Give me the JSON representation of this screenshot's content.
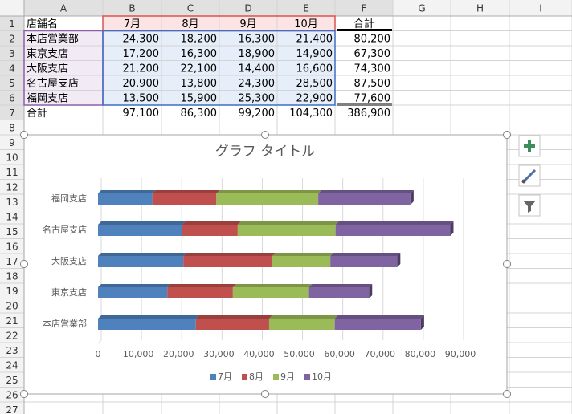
{
  "sheet": {
    "column_headers": [
      "A",
      "B",
      "C",
      "D",
      "E",
      "F",
      "G",
      "H",
      "I"
    ],
    "row_headers": [
      "1",
      "2",
      "3",
      "4",
      "5",
      "6",
      "7",
      "8",
      "9",
      "10",
      "11",
      "12",
      "13",
      "14",
      "15",
      "16",
      "17",
      "18",
      "19",
      "20",
      "21",
      "22",
      "23",
      "24",
      "25",
      "26",
      "27"
    ],
    "cells": [
      [
        "店舗名",
        "7月",
        "8月",
        "9月",
        "10月",
        "合計"
      ],
      [
        "本店営業部",
        "24,300",
        "18,200",
        "16,300",
        "21,400",
        "80,200"
      ],
      [
        "東京支店",
        "17,200",
        "16,300",
        "18,900",
        "14,900",
        "67,300"
      ],
      [
        "大阪支店",
        "21,200",
        "22,100",
        "14,400",
        "16,600",
        "74,300"
      ],
      [
        "名古屋支店",
        "20,900",
        "13,800",
        "24,300",
        "28,500",
        "87,500"
      ],
      [
        "福岡支店",
        "13,500",
        "15,900",
        "25,300",
        "22,900",
        "77,600"
      ],
      [
        "合計",
        "97,100",
        "86,300",
        "99,200",
        "104,300",
        "386,900"
      ]
    ]
  },
  "chart_data": {
    "type": "bar",
    "orientation": "horizontal",
    "stacked": true,
    "title": "グラフ タイトル",
    "categories": [
      "本店営業部",
      "東京支店",
      "大阪支店",
      "名古屋支店",
      "福岡支店"
    ],
    "series": [
      {
        "name": "7月",
        "color": "#4f81bd",
        "values": [
          24300,
          17200,
          21200,
          20900,
          13500
        ]
      },
      {
        "name": "8月",
        "color": "#c0504d",
        "values": [
          18200,
          16300,
          22100,
          13800,
          15900
        ]
      },
      {
        "name": "9月",
        "color": "#9bbb59",
        "values": [
          16300,
          18900,
          14400,
          24300,
          25300
        ]
      },
      {
        "name": "10月",
        "color": "#8064a2",
        "values": [
          21400,
          14900,
          16600,
          28500,
          22900
        ]
      }
    ],
    "xlim": [
      0,
      90000
    ],
    "xticks": [
      0,
      {
        "value": 10000,
        "label": "10,000"
      },
      {
        "value": 20000,
        "label": "20,000"
      },
      {
        "value": 30000,
        "label": "30,000"
      },
      {
        "value": 40000,
        "label": "40,000"
      },
      {
        "value": 50000,
        "label": "50,000"
      },
      {
        "value": 60000,
        "label": "60,000"
      },
      {
        "value": 70000,
        "label": "70,000"
      },
      {
        "value": 80000,
        "label": "80,000"
      },
      {
        "value": 90000,
        "label": "90,000"
      }
    ],
    "grid": true,
    "legend": "bottom"
  }
}
